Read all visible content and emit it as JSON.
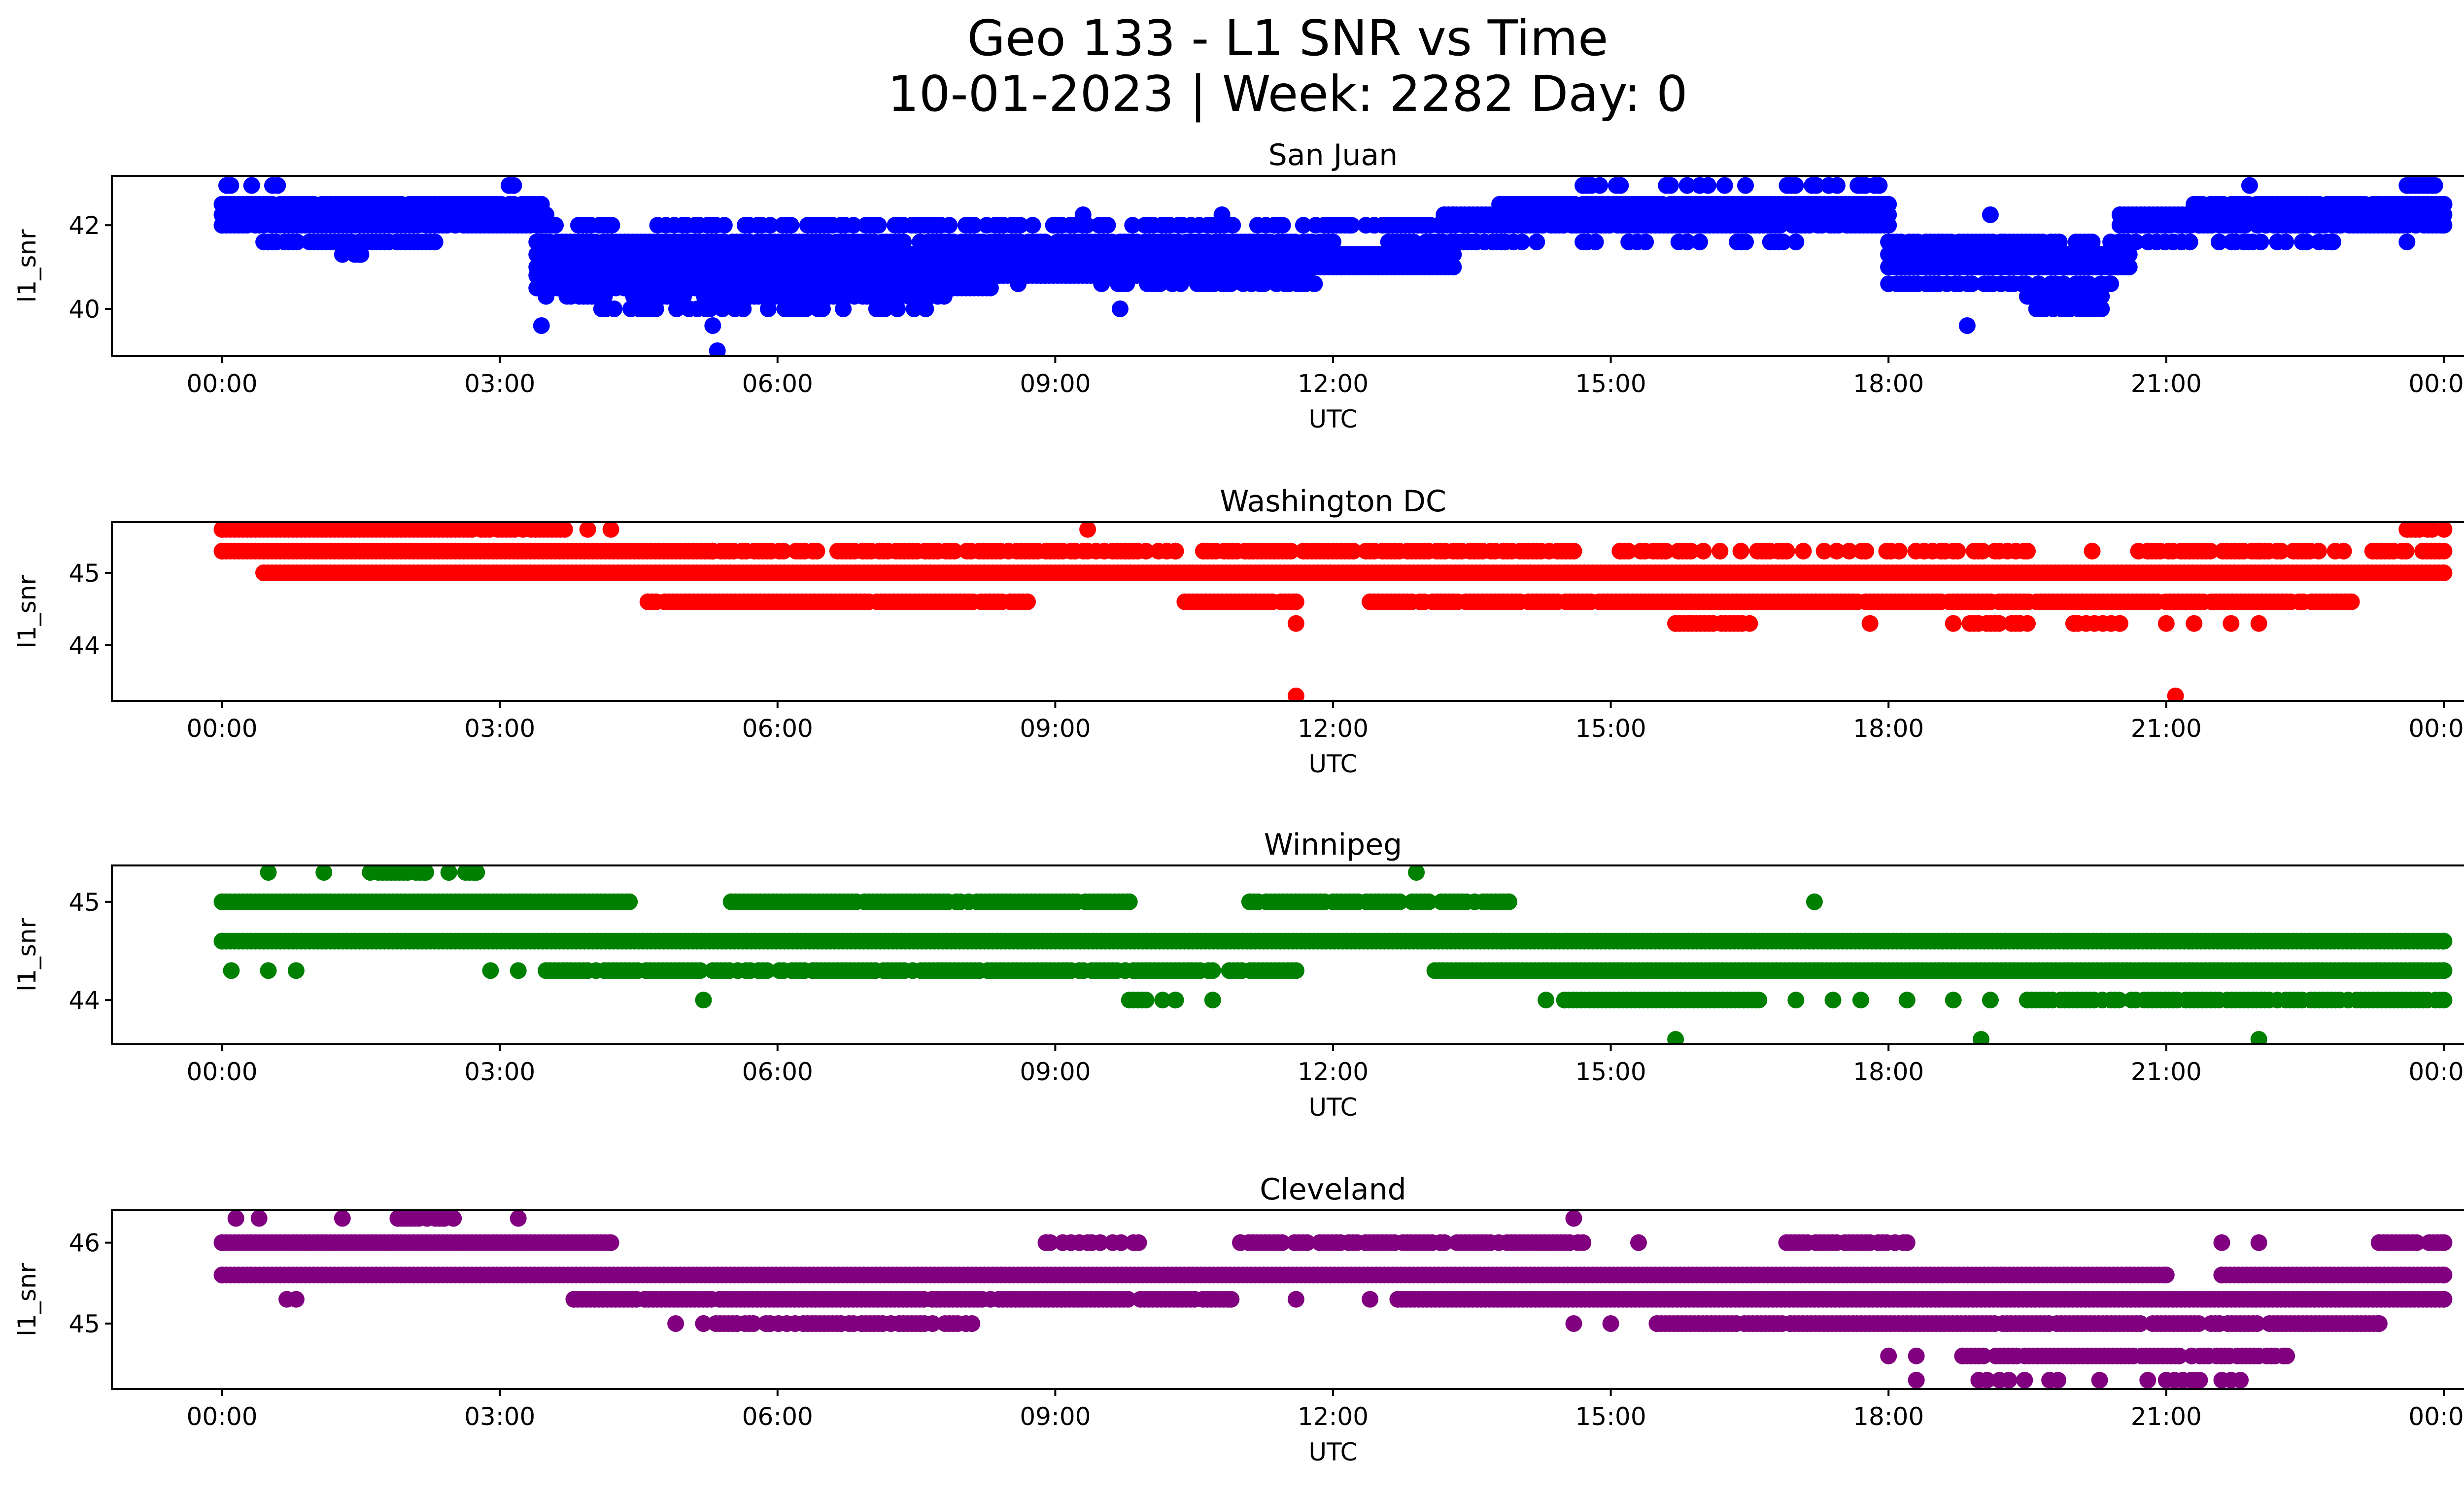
{
  "chart_data": {
    "type": "scatter",
    "title_line1": "Geo 133 - L1 SNR vs Time",
    "title_line2": "10-01-2023 | Week: 2282 Day: 0",
    "x_unit": "hours UTC",
    "xlim": [
      -1.19,
      25.19
    ],
    "xticks": [
      0,
      3,
      6,
      9,
      12,
      15,
      18,
      21,
      24
    ],
    "xtick_labels": [
      "00:00",
      "03:00",
      "06:00",
      "09:00",
      "12:00",
      "15:00",
      "18:00",
      "21:00",
      "00:00"
    ],
    "grid": false,
    "panels": [
      {
        "title": "San Juan",
        "xlabel": "UTC",
        "ylabel": "l1_snr",
        "color": "#0000ff",
        "ylim": [
          38.87,
          43.18
        ],
        "yticks": [
          40,
          42
        ],
        "ytick_labels": [
          "40",
          "42"
        ],
        "segments": [
          {
            "level": 42.95,
            "from": 0.05,
            "to": 0.6,
            "density": 0.6
          },
          {
            "level": 42.5,
            "from": 0.0,
            "to": 3.45,
            "density": 0.9
          },
          {
            "level": 42.25,
            "from": 0.0,
            "to": 3.5,
            "density": 1
          },
          {
            "level": 42.0,
            "from": 0.0,
            "to": 3.6,
            "density": 0.95
          },
          {
            "level": 41.6,
            "from": 0.45,
            "to": 2.3,
            "density": 0.8
          },
          {
            "level": 41.3,
            "from": 1.3,
            "to": 1.5,
            "density": 0.6
          },
          {
            "level": 42.95,
            "from": 3.1,
            "to": 3.15,
            "density": 1
          },
          {
            "level": 42.0,
            "from": 3.4,
            "to": 12.6,
            "density": 0.5
          },
          {
            "level": 41.6,
            "from": 3.4,
            "to": 12.0,
            "density": 0.9
          },
          {
            "level": 41.3,
            "from": 3.4,
            "to": 13.3,
            "density": 1
          },
          {
            "level": 41.0,
            "from": 3.4,
            "to": 13.3,
            "density": 1
          },
          {
            "level": 40.8,
            "from": 3.4,
            "to": 11.7,
            "density": 0.95
          },
          {
            "level": 40.5,
            "from": 3.4,
            "to": 8.3,
            "density": 0.9
          },
          {
            "level": 40.3,
            "from": 3.5,
            "to": 7.8,
            "density": 0.7
          },
          {
            "level": 40.0,
            "from": 4.1,
            "to": 7.6,
            "density": 0.35
          },
          {
            "level": 40.6,
            "from": 9.5,
            "to": 11.8,
            "density": 0.5
          },
          {
            "level": 41.6,
            "from": 12.6,
            "to": 14.2,
            "density": 0.8
          },
          {
            "level": 42.0,
            "from": 12.6,
            "to": 18.0,
            "density": 0.9
          },
          {
            "level": 42.25,
            "from": 13.2,
            "to": 18.0,
            "density": 1
          },
          {
            "level": 42.5,
            "from": 13.8,
            "to": 18.0,
            "density": 0.95
          },
          {
            "level": 42.95,
            "from": 14.7,
            "to": 17.9,
            "density": 0.35
          },
          {
            "level": 41.6,
            "from": 14.7,
            "to": 17.0,
            "density": 0.4
          },
          {
            "level": 41.6,
            "from": 18.0,
            "to": 20.2,
            "density": 0.9
          },
          {
            "level": 41.3,
            "from": 18.0,
            "to": 20.6,
            "density": 1
          },
          {
            "level": 41.0,
            "from": 18.0,
            "to": 20.6,
            "density": 1
          },
          {
            "level": 40.6,
            "from": 18.0,
            "to": 20.4,
            "density": 0.7
          },
          {
            "level": 40.3,
            "from": 19.5,
            "to": 20.3,
            "density": 0.9
          },
          {
            "level": 40.0,
            "from": 19.6,
            "to": 20.3,
            "density": 0.8
          },
          {
            "level": 42.0,
            "from": 20.5,
            "to": 24.0,
            "density": 0.9
          },
          {
            "level": 42.25,
            "from": 20.5,
            "to": 24.0,
            "density": 1
          },
          {
            "level": 42.5,
            "from": 21.3,
            "to": 24.0,
            "density": 0.95
          },
          {
            "level": 41.6,
            "from": 20.4,
            "to": 22.8,
            "density": 0.5
          },
          {
            "level": 42.95,
            "from": 23.6,
            "to": 23.9,
            "density": 0.6
          }
        ],
        "points": [
          {
            "t": 0.5,
            "v": 41.6
          },
          {
            "t": 5.3,
            "v": 39.6
          },
          {
            "t": 5.35,
            "v": 39.0
          },
          {
            "t": 3.45,
            "v": 39.6
          },
          {
            "t": 9.3,
            "v": 42.25
          },
          {
            "t": 10.8,
            "v": 42.25
          },
          {
            "t": 11.95,
            "v": 42.0
          },
          {
            "t": 12.2,
            "v": 42.0
          },
          {
            "t": 17.75,
            "v": 42.95
          },
          {
            "t": 18.85,
            "v": 39.6
          },
          {
            "t": 21.9,
            "v": 42.95
          },
          {
            "t": 23.6,
            "v": 41.6
          },
          {
            "t": 19.1,
            "v": 42.25
          },
          {
            "t": 13.3,
            "v": 42.25
          },
          {
            "t": 8.6,
            "v": 40.6
          },
          {
            "t": 9.7,
            "v": 40.0
          }
        ]
      },
      {
        "title": "Washington DC",
        "xlabel": "UTC",
        "ylabel": "l1_snr",
        "color": "#ff0000",
        "ylim": [
          43.23,
          45.7
        ],
        "yticks": [
          44,
          45
        ],
        "ytick_labels": [
          "44",
          "45"
        ],
        "segments": [
          {
            "level": 45.6,
            "from": 0.0,
            "to": 2.7,
            "density": 1
          },
          {
            "level": 45.6,
            "from": 2.8,
            "to": 3.7,
            "density": 0.9
          },
          {
            "level": 45.3,
            "from": 0.0,
            "to": 5.3,
            "density": 1
          },
          {
            "level": 45.3,
            "from": 5.3,
            "to": 10.3,
            "density": 0.7
          },
          {
            "level": 45.3,
            "from": 10.6,
            "to": 14.6,
            "density": 0.85
          },
          {
            "level": 45.3,
            "from": 15.1,
            "to": 19.5,
            "density": 0.5
          },
          {
            "level": 45.3,
            "from": 20.8,
            "to": 24.0,
            "density": 0.6
          },
          {
            "level": 45.0,
            "from": 0.45,
            "to": 24.0,
            "density": 1
          },
          {
            "level": 44.6,
            "from": 4.6,
            "to": 8.7,
            "density": 0.9
          },
          {
            "level": 44.6,
            "from": 10.4,
            "to": 11.6,
            "density": 0.9
          },
          {
            "level": 44.6,
            "from": 12.4,
            "to": 23.0,
            "density": 0.95
          },
          {
            "level": 44.3,
            "from": 15.7,
            "to": 16.5,
            "density": 0.9
          },
          {
            "level": 44.3,
            "from": 18.7,
            "to": 19.5,
            "density": 0.7
          },
          {
            "level": 44.3,
            "from": 20.0,
            "to": 20.5,
            "density": 0.7
          },
          {
            "level": 45.6,
            "from": 23.6,
            "to": 24.0,
            "density": 0.8
          }
        ],
        "points": [
          {
            "t": 3.95,
            "v": 45.6
          },
          {
            "t": 4.2,
            "v": 45.6
          },
          {
            "t": 9.35,
            "v": 45.6
          },
          {
            "t": 11.6,
            "v": 44.3
          },
          {
            "t": 11.6,
            "v": 43.3
          },
          {
            "t": 21.1,
            "v": 43.3
          },
          {
            "t": 17.8,
            "v": 44.3
          },
          {
            "t": 21.3,
            "v": 44.3
          },
          {
            "t": 21.7,
            "v": 44.3
          },
          {
            "t": 22.0,
            "v": 44.3
          },
          {
            "t": 22.0,
            "v": 45.3
          },
          {
            "t": 21.0,
            "v": 44.3
          },
          {
            "t": 20.2,
            "v": 45.3
          },
          {
            "t": 20.7,
            "v": 45.3
          }
        ]
      },
      {
        "title": "Winnipeg",
        "xlabel": "UTC",
        "ylabel": "l1_snr",
        "color": "#008000",
        "ylim": [
          43.55,
          45.37
        ],
        "yticks": [
          44,
          45
        ],
        "ytick_labels": [
          "44",
          "45"
        ],
        "segments": [
          {
            "level": 45.3,
            "from": 1.6,
            "to": 2.2,
            "density": 0.8
          },
          {
            "level": 45.3,
            "from": 2.45,
            "to": 2.75,
            "density": 0.8
          },
          {
            "level": 45.0,
            "from": 0.0,
            "to": 4.4,
            "density": 1
          },
          {
            "level": 45.0,
            "from": 5.5,
            "to": 9.8,
            "density": 0.9
          },
          {
            "level": 45.0,
            "from": 11.1,
            "to": 13.9,
            "density": 0.85
          },
          {
            "level": 44.6,
            "from": 0.0,
            "to": 24.0,
            "density": 1
          },
          {
            "level": 44.3,
            "from": 3.5,
            "to": 11.6,
            "density": 0.85
          },
          {
            "level": 44.3,
            "from": 13.1,
            "to": 24.0,
            "density": 1
          },
          {
            "level": 44.0,
            "from": 9.8,
            "to": 10.3,
            "density": 0.6
          },
          {
            "level": 44.0,
            "from": 14.5,
            "to": 16.6,
            "density": 1
          },
          {
            "level": 44.0,
            "from": 19.5,
            "to": 24.0,
            "density": 0.8
          }
        ],
        "points": [
          {
            "t": 0.5,
            "v": 45.3
          },
          {
            "t": 1.1,
            "v": 45.3
          },
          {
            "t": 12.9,
            "v": 45.3
          },
          {
            "t": 17.2,
            "v": 45.0
          },
          {
            "t": 5.2,
            "v": 44.0
          },
          {
            "t": 0.1,
            "v": 44.3
          },
          {
            "t": 0.5,
            "v": 44.3
          },
          {
            "t": 0.8,
            "v": 44.3
          },
          {
            "t": 2.9,
            "v": 44.3
          },
          {
            "t": 3.2,
            "v": 44.3
          },
          {
            "t": 15.7,
            "v": 43.6
          },
          {
            "t": 19.0,
            "v": 43.6
          },
          {
            "t": 22.0,
            "v": 43.6
          },
          {
            "t": 10.7,
            "v": 44.0
          },
          {
            "t": 14.3,
            "v": 44.0
          },
          {
            "t": 17.0,
            "v": 44.0
          },
          {
            "t": 17.4,
            "v": 44.0
          },
          {
            "t": 17.7,
            "v": 44.0
          },
          {
            "t": 18.2,
            "v": 44.0
          },
          {
            "t": 18.7,
            "v": 44.0
          },
          {
            "t": 19.1,
            "v": 44.0
          }
        ]
      },
      {
        "title": "Cleveland",
        "xlabel": "UTC",
        "ylabel": "l1_snr",
        "color": "#800080",
        "ylim": [
          44.19,
          46.4
        ],
        "yticks": [
          45,
          46
        ],
        "ytick_labels": [
          "45",
          "46"
        ],
        "segments": [
          {
            "level": 46.3,
            "from": 1.9,
            "to": 2.4,
            "density": 0.8
          },
          {
            "level": 46.0,
            "from": 0.0,
            "to": 4.2,
            "density": 1
          },
          {
            "level": 46.0,
            "from": 8.9,
            "to": 9.9,
            "density": 0.4
          },
          {
            "level": 46.0,
            "from": 11.0,
            "to": 14.7,
            "density": 0.9
          },
          {
            "level": 46.0,
            "from": 16.9,
            "to": 18.2,
            "density": 0.8
          },
          {
            "level": 46.0,
            "from": 23.3,
            "to": 24.0,
            "density": 0.8
          },
          {
            "level": 45.6,
            "from": 0.0,
            "to": 21.0,
            "density": 1
          },
          {
            "level": 45.6,
            "from": 21.6,
            "to": 24.0,
            "density": 1
          },
          {
            "level": 45.3,
            "from": 3.8,
            "to": 10.9,
            "density": 0.95
          },
          {
            "level": 45.3,
            "from": 12.7,
            "to": 24.0,
            "density": 1
          },
          {
            "level": 45.0,
            "from": 5.2,
            "to": 8.1,
            "density": 0.6
          },
          {
            "level": 45.0,
            "from": 15.5,
            "to": 23.3,
            "density": 0.9
          },
          {
            "level": 44.6,
            "from": 18.8,
            "to": 22.3,
            "density": 0.9
          },
          {
            "level": 44.3,
            "from": 18.3,
            "to": 21.6,
            "density": 0.15
          }
        ],
        "points": [
          {
            "t": 0.15,
            "v": 46.3
          },
          {
            "t": 0.4,
            "v": 46.3
          },
          {
            "t": 1.3,
            "v": 46.3
          },
          {
            "t": 2.5,
            "v": 46.3
          },
          {
            "t": 3.2,
            "v": 46.3
          },
          {
            "t": 14.6,
            "v": 46.3
          },
          {
            "t": 0.7,
            "v": 45.3
          },
          {
            "t": 0.8,
            "v": 45.3
          },
          {
            "t": 4.9,
            "v": 45.0
          },
          {
            "t": 11.6,
            "v": 45.3
          },
          {
            "t": 12.4,
            "v": 45.3
          },
          {
            "t": 14.6,
            "v": 45.0
          },
          {
            "t": 15.0,
            "v": 45.0
          },
          {
            "t": 15.3,
            "v": 46.0
          },
          {
            "t": 21.6,
            "v": 46.0
          },
          {
            "t": 22.0,
            "v": 46.0
          },
          {
            "t": 18.0,
            "v": 44.6
          },
          {
            "t": 18.3,
            "v": 44.6
          },
          {
            "t": 18.3,
            "v": 44.3
          },
          {
            "t": 19.2,
            "v": 44.3
          },
          {
            "t": 19.3,
            "v": 44.3
          },
          {
            "t": 20.8,
            "v": 44.3
          },
          {
            "t": 21.0,
            "v": 44.3
          },
          {
            "t": 21.7,
            "v": 44.3
          },
          {
            "t": 21.8,
            "v": 44.3
          }
        ]
      }
    ]
  }
}
